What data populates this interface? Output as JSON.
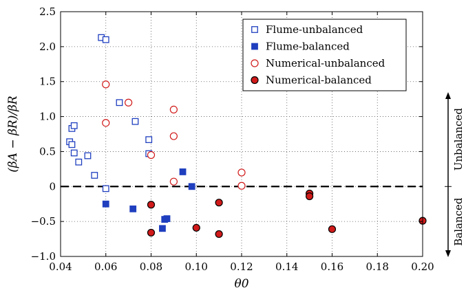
{
  "chart_data": {
    "type": "scatter",
    "xlabel": "θ0",
    "ylabel": "(βA − βR)/βR",
    "xlim": [
      0.04,
      0.2
    ],
    "ylim": [
      -1.0,
      2.5
    ],
    "xticks": [
      0.04,
      0.06,
      0.08,
      0.1,
      0.12,
      0.14,
      0.16,
      0.18,
      0.2
    ],
    "xtick_labels": [
      "0.04",
      "0.06",
      "0.08",
      "0.10",
      "0.12",
      "0.14",
      "0.16",
      "0.18",
      "0.20"
    ],
    "yticks": [
      -1.0,
      -0.5,
      0,
      0.5,
      1.0,
      1.5,
      2.0,
      2.5
    ],
    "ytick_labels": [
      "−1.0",
      "−0.5",
      "0",
      "0.5",
      "1.0",
      "1.5",
      "2.0",
      "2.5"
    ],
    "grid": true,
    "legend_position": "top-right",
    "reference_line_y": 0,
    "side_annotations": {
      "upper": "Unbalanced",
      "lower": "Balanced"
    },
    "series": [
      {
        "name": "Flume-unbalanced",
        "marker": "open-square",
        "color": "#1f3fbf",
        "points": [
          [
            0.058,
            2.13
          ],
          [
            0.06,
            2.1
          ],
          [
            0.044,
            0.64
          ],
          [
            0.045,
            0.83
          ],
          [
            0.046,
            0.87
          ],
          [
            0.045,
            0.6
          ],
          [
            0.046,
            0.48
          ],
          [
            0.048,
            0.35
          ],
          [
            0.052,
            0.44
          ],
          [
            0.055,
            0.16
          ],
          [
            0.06,
            -0.03
          ],
          [
            0.066,
            1.2
          ],
          [
            0.073,
            0.93
          ],
          [
            0.079,
            0.67
          ],
          [
            0.079,
            0.47
          ]
        ]
      },
      {
        "name": "Flume-balanced",
        "marker": "filled-square",
        "color": "#1f3fbf",
        "points": [
          [
            0.06,
            -0.25
          ],
          [
            0.072,
            -0.32
          ],
          [
            0.085,
            -0.6
          ],
          [
            0.086,
            -0.47
          ],
          [
            0.087,
            -0.46
          ],
          [
            0.094,
            0.21
          ],
          [
            0.098,
            0.0
          ]
        ]
      },
      {
        "name": "Numerical-unbalanced",
        "marker": "open-circle",
        "color": "#d11a1a",
        "points": [
          [
            0.06,
            1.46
          ],
          [
            0.06,
            0.91
          ],
          [
            0.07,
            1.2
          ],
          [
            0.08,
            0.45
          ],
          [
            0.09,
            1.1
          ],
          [
            0.09,
            0.72
          ],
          [
            0.09,
            0.07
          ],
          [
            0.12,
            0.2
          ],
          [
            0.12,
            0.01
          ]
        ]
      },
      {
        "name": "Numerical-balanced",
        "marker": "filled-circle",
        "color": "#d11a1a",
        "points": [
          [
            0.08,
            -0.26
          ],
          [
            0.08,
            -0.66
          ],
          [
            0.1,
            -0.59
          ],
          [
            0.11,
            -0.23
          ],
          [
            0.11,
            -0.68
          ],
          [
            0.15,
            -0.1
          ],
          [
            0.15,
            -0.14
          ],
          [
            0.16,
            -0.61
          ],
          [
            0.2,
            -0.49
          ]
        ]
      }
    ]
  }
}
